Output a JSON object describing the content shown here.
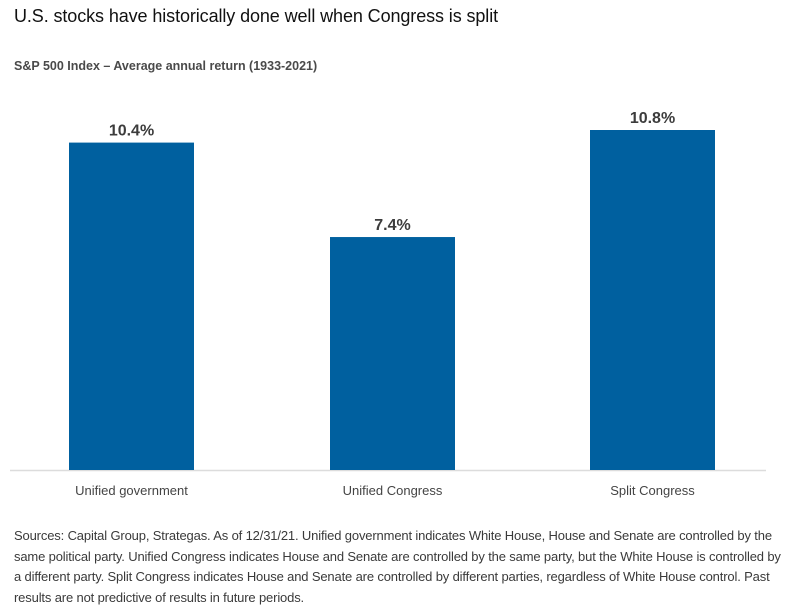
{
  "header": {
    "title": "U.S. stocks have historically done well when Congress is split",
    "subtitle": "S&P 500 Index – Average annual return (1933-2021)"
  },
  "chart_data": {
    "type": "bar",
    "title": "U.S. stocks have historically done well when Congress is split",
    "subtitle": "S&P 500 Index – Average annual return (1933-2021)",
    "categories": [
      "Unified government",
      "Unified Congress",
      "Split Congress"
    ],
    "values": [
      10.4,
      7.4,
      10.8
    ],
    "data_labels": [
      "10.4%",
      "7.4%",
      "10.8%"
    ],
    "unit": "%",
    "xlabel": "",
    "ylabel": "",
    "ylim": [
      0,
      10.8
    ],
    "grid": false,
    "legend": "none",
    "bar_color": "#00609f",
    "label_color": "#3c3c3c",
    "axis_color": "#dcdcdc"
  },
  "footnote": "Sources: Capital Group, Strategas. As of 12/31/21. Unified government indicates White House, House and Senate are controlled by the same political party. Unified Congress indicates House and Senate are controlled by the same party, but the White House is controlled by a different party. Split Congress indicates House and Senate are controlled by different parties, regardless of White House control. Past results are not predictive of results in future periods."
}
